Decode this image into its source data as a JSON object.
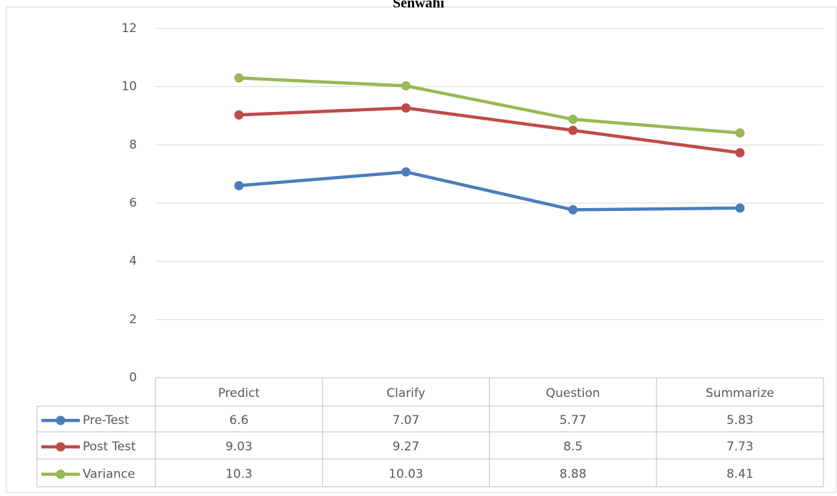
{
  "chart_data": {
    "type": "line",
    "title": "Senwahi",
    "categories": [
      "Predict",
      "Clarify",
      "Question",
      "Summarize"
    ],
    "series": [
      {
        "name": "Pre-Test",
        "color": "#4a7ebb",
        "values": [
          6.6,
          7.07,
          5.77,
          5.83
        ]
      },
      {
        "name": "Post Test",
        "color": "#be4b48",
        "values": [
          9.03,
          9.27,
          8.5,
          7.73
        ]
      },
      {
        "name": "Variance",
        "color": "#98b954",
        "values": [
          10.3,
          10.03,
          8.88,
          8.41
        ]
      }
    ],
    "ylim": [
      0,
      12
    ],
    "yticks": [
      0,
      2,
      4,
      6,
      8,
      10,
      12
    ],
    "grid": true,
    "data_table": true
  }
}
